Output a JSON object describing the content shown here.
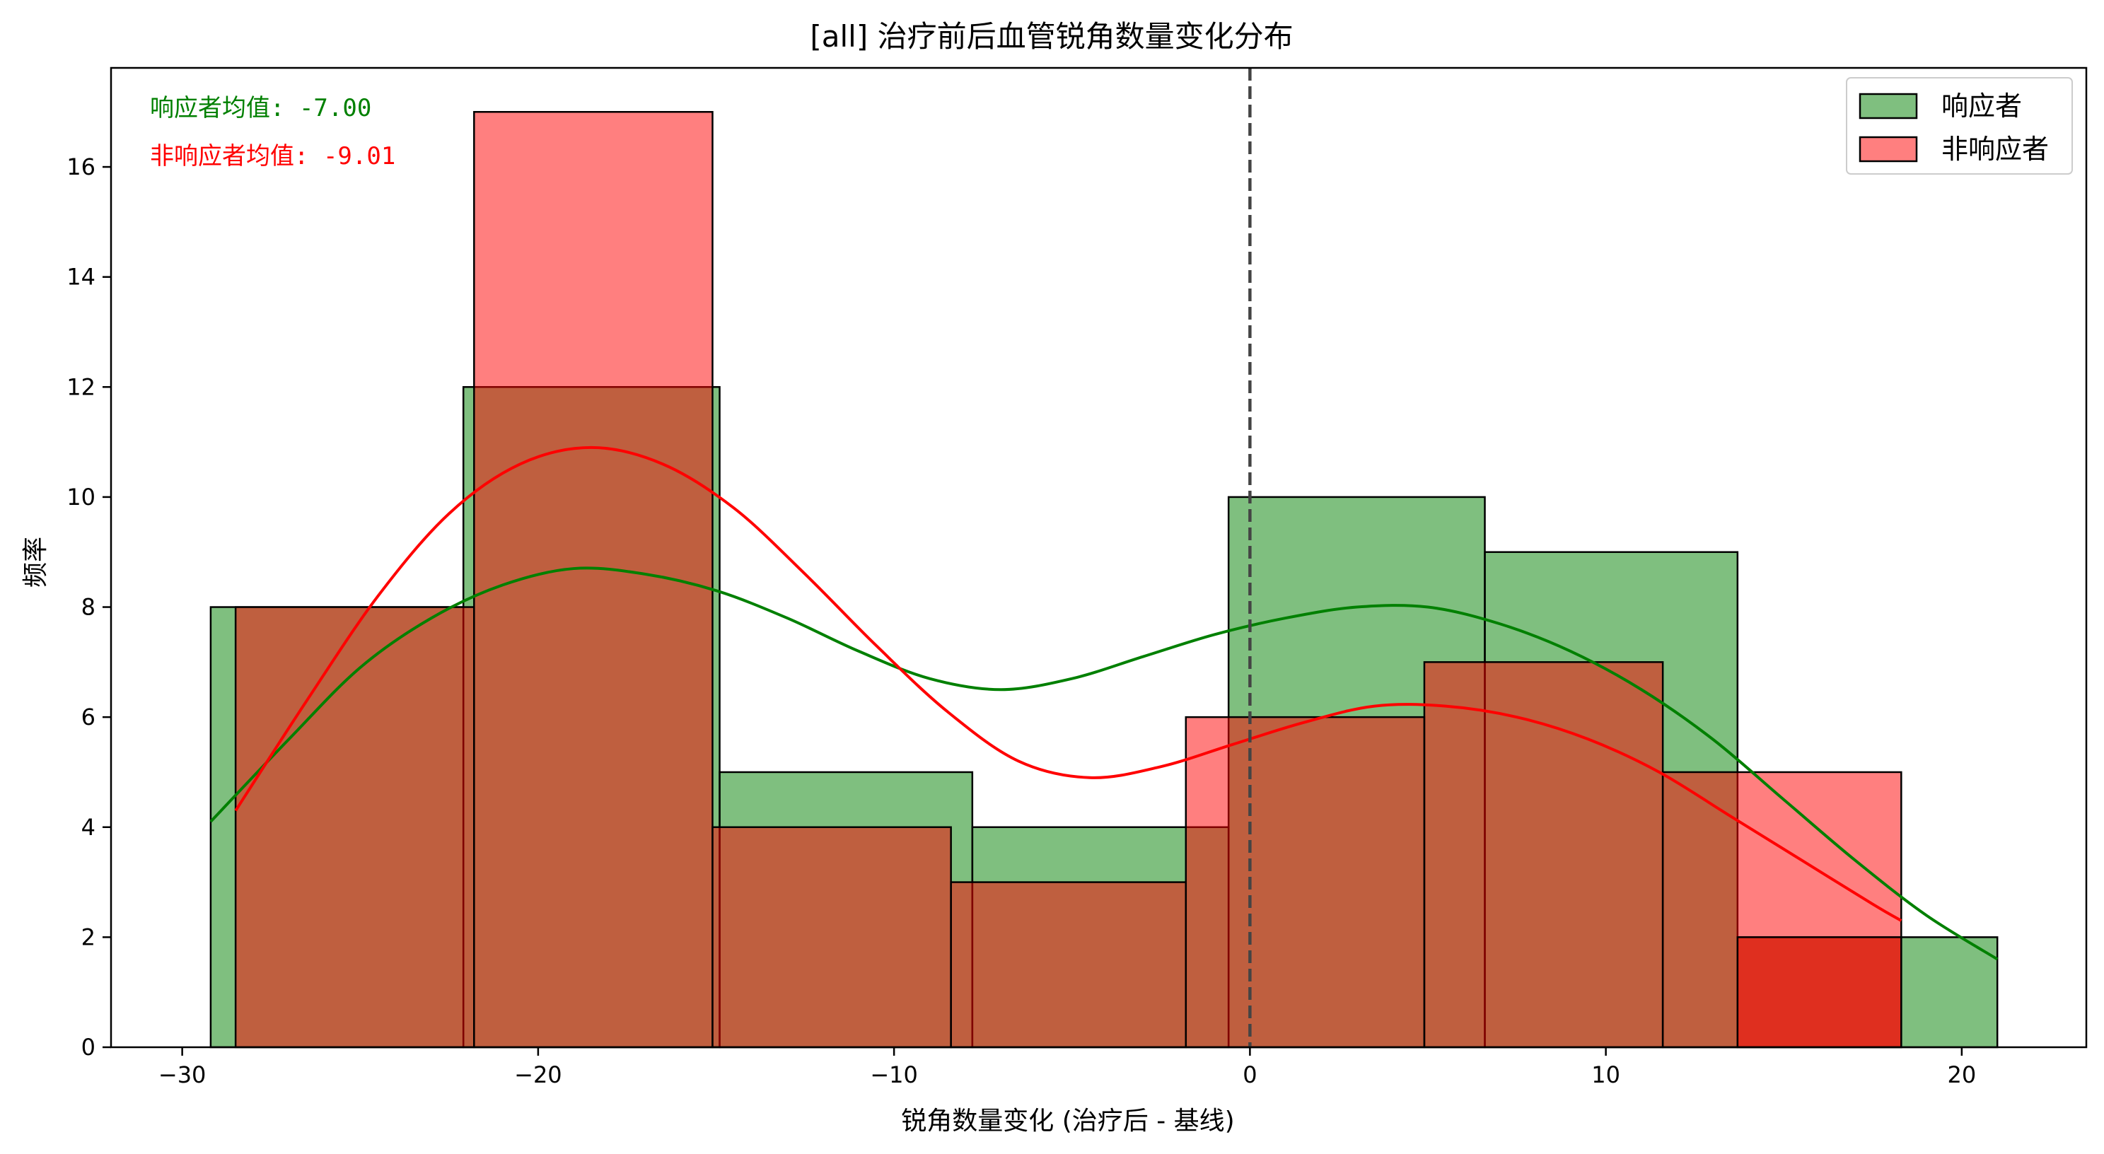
{
  "chart_data": {
    "type": "histogram",
    "title": "[all] 治疗前后血管锐角数量变化分布",
    "xlabel": "锐角数量变化 (治疗后 - 基线)",
    "ylabel": "频率",
    "xlim": [
      -32,
      23.5
    ],
    "ylim": [
      0,
      17.8
    ],
    "xticks": [
      -30,
      -20,
      -10,
      0,
      10,
      20
    ],
    "xtick_labels": [
      "−30",
      "−20",
      "−10",
      "0",
      "10",
      "20"
    ],
    "yticks": [
      0,
      2,
      4,
      6,
      8,
      10,
      12,
      14,
      16
    ],
    "yticks_labels": [
      "0",
      "2",
      "4",
      "6",
      "8",
      "10",
      "12",
      "14",
      "16"
    ],
    "reference_line": {
      "x": 0,
      "style": "dashed",
      "color": "#444444"
    },
    "legend": {
      "position": "top-right",
      "entries": [
        "响应者",
        "非响应者"
      ]
    },
    "annotations": [
      {
        "text": "响应者均值: -7.00",
        "color": "#008000"
      },
      {
        "text": "非响应者均值: -9.01",
        "color": "#ff0000"
      }
    ],
    "series": [
      {
        "name": "响应者",
        "fill": "#008000",
        "fill_opacity": 0.5,
        "line": "#008000",
        "bin_edges": [
          -29.2,
          -22.1,
          -14.9,
          -7.8,
          -0.6,
          6.6,
          13.7,
          21.0
        ],
        "counts": [
          8,
          12,
          5,
          4,
          10,
          9,
          2
        ],
        "kde": [
          [
            -29.2,
            4.1
          ],
          [
            -27,
            5.6
          ],
          [
            -25,
            6.9
          ],
          [
            -23,
            7.8
          ],
          [
            -21,
            8.4
          ],
          [
            -19,
            8.7
          ],
          [
            -17,
            8.6
          ],
          [
            -15,
            8.3
          ],
          [
            -13,
            7.8
          ],
          [
            -11,
            7.2
          ],
          [
            -9,
            6.7
          ],
          [
            -7,
            6.5
          ],
          [
            -5,
            6.7
          ],
          [
            -3,
            7.1
          ],
          [
            -1,
            7.5
          ],
          [
            1,
            7.8
          ],
          [
            3,
            8.0
          ],
          [
            5,
            8.0
          ],
          [
            7,
            7.7
          ],
          [
            9,
            7.2
          ],
          [
            11,
            6.5
          ],
          [
            13,
            5.6
          ],
          [
            15,
            4.5
          ],
          [
            17,
            3.4
          ],
          [
            19,
            2.4
          ],
          [
            21.0,
            1.6
          ]
        ]
      },
      {
        "name": "非响应者",
        "fill": "#ff0000",
        "fill_opacity": 0.5,
        "line": "#ff0000",
        "bin_edges": [
          -28.5,
          -21.8,
          -15.1,
          -8.4,
          -1.8,
          4.9,
          11.6,
          18.3
        ],
        "counts": [
          8,
          17,
          4,
          3,
          6,
          7,
          5
        ],
        "bin_edges_tail": [
          13.7,
          18.3
        ],
        "counts_tail": [
          2
        ],
        "kde": [
          [
            -28.5,
            4.3
          ],
          [
            -26.5,
            6.3
          ],
          [
            -24.5,
            8.2
          ],
          [
            -22.5,
            9.7
          ],
          [
            -20.5,
            10.6
          ],
          [
            -18.5,
            10.9
          ],
          [
            -16.5,
            10.6
          ],
          [
            -14.5,
            9.8
          ],
          [
            -12.5,
            8.6
          ],
          [
            -10.5,
            7.3
          ],
          [
            -8.5,
            6.1
          ],
          [
            -6.5,
            5.2
          ],
          [
            -4.5,
            4.9
          ],
          [
            -2.5,
            5.1
          ],
          [
            -0.5,
            5.5
          ],
          [
            1.5,
            5.9
          ],
          [
            3.5,
            6.2
          ],
          [
            5.5,
            6.2
          ],
          [
            7.5,
            6.0
          ],
          [
            9.5,
            5.6
          ],
          [
            11.5,
            5.0
          ],
          [
            13.5,
            4.2
          ],
          [
            15.5,
            3.4
          ],
          [
            17.5,
            2.6
          ],
          [
            18.3,
            2.3
          ]
        ]
      }
    ]
  }
}
